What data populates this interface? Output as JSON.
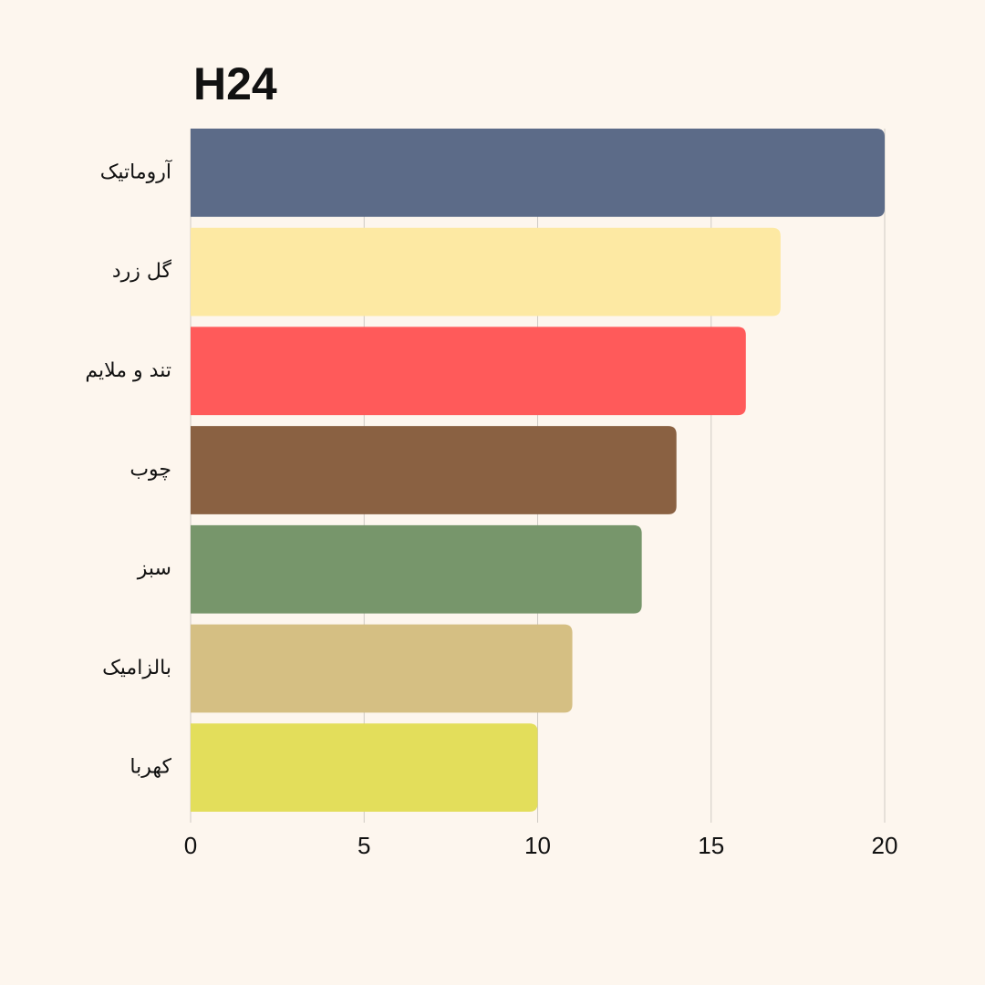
{
  "chart_data": {
    "type": "barh",
    "title": "H24",
    "categories": [
      "آروماتیک",
      "گل زرد",
      "تند و ملایم",
      "چوب",
      "سبز",
      "بالزامیک",
      "کهربا"
    ],
    "values": [
      20,
      17,
      16,
      14,
      13,
      11,
      10
    ],
    "colors": [
      "#5c6b88",
      "#fde9a3",
      "#ff5a5a",
      "#8a6142",
      "#77966b",
      "#d5bf83",
      "#e3de5b"
    ],
    "xlim": [
      0,
      20
    ],
    "xticks": [
      0,
      5,
      10,
      15,
      20
    ],
    "grid": true
  }
}
